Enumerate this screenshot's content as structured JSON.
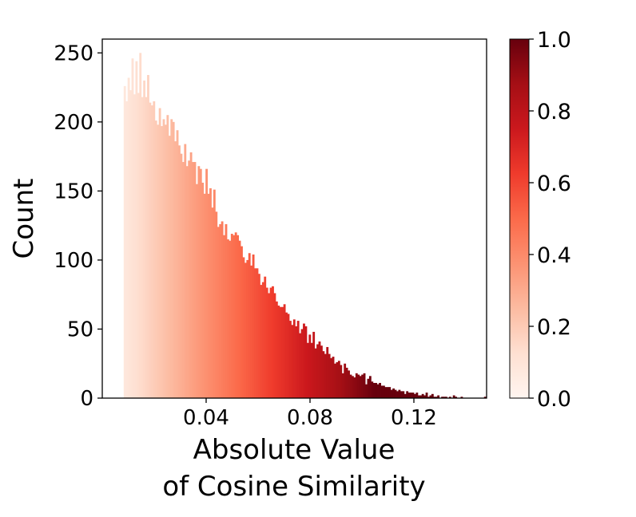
{
  "chart_data": {
    "type": "bar",
    "subtype": "histogram",
    "xlabel_lines": [
      "Absolute Value",
      "of Cosine Similarity"
    ],
    "ylabel": "Count",
    "xlim": [
      0.0,
      0.148
    ],
    "ylim": [
      0,
      260
    ],
    "xticks": [
      0.04,
      0.08,
      0.12
    ],
    "xtick_labels": [
      "0.04",
      "0.08",
      "0.12"
    ],
    "yticks": [
      0,
      50,
      100,
      150,
      200,
      250
    ],
    "ytick_labels": [
      "0",
      "50",
      "100",
      "150",
      "200",
      "250"
    ],
    "bin_start": 0.0,
    "bin_width": 0.00075,
    "counts": [
      0,
      0,
      0,
      0,
      0,
      0,
      0,
      0,
      0,
      0,
      0,
      226,
      215,
      232,
      223,
      246,
      220,
      244,
      221,
      250,
      218,
      230,
      218,
      234,
      214,
      212,
      215,
      201,
      198,
      210,
      197,
      202,
      198,
      205,
      190,
      202,
      200,
      186,
      194,
      183,
      177,
      171,
      184,
      168,
      172,
      178,
      171,
      171,
      155,
      168,
      166,
      156,
      148,
      166,
      148,
      152,
      138,
      151,
      135,
      124,
      126,
      128,
      118,
      126,
      115,
      114,
      119,
      118,
      120,
      118,
      114,
      110,
      102,
      98,
      100,
      105,
      96,
      104,
      94,
      94,
      90,
      82,
      84,
      88,
      80,
      76,
      80,
      81,
      76,
      70,
      67,
      66,
      66,
      68,
      62,
      61,
      56,
      53,
      57,
      52,
      56,
      47,
      50,
      54,
      52,
      40,
      46,
      40,
      48,
      36,
      39,
      41,
      38,
      34,
      32,
      37,
      32,
      29,
      30,
      25,
      26,
      27,
      24,
      18,
      25,
      22,
      20,
      17,
      16,
      15,
      18,
      17,
      16,
      17,
      18,
      10,
      14,
      16,
      12,
      11,
      11,
      10,
      11,
      9,
      9,
      8,
      8,
      8,
      6,
      7,
      6,
      5,
      6,
      5,
      5,
      3,
      5,
      4,
      4,
      4,
      3,
      4,
      2,
      2,
      3,
      2,
      4,
      1,
      2,
      3,
      1,
      1,
      2,
      0,
      1,
      1,
      1,
      0,
      1,
      0,
      2,
      1,
      0,
      0,
      1,
      0,
      0,
      0,
      0,
      0,
      0,
      0,
      0,
      0,
      0,
      0,
      1
    ],
    "colormap": "Reds",
    "colorbar": {
      "range": [
        0.0,
        1.0
      ],
      "ticks": [
        0.0,
        0.2,
        0.4,
        0.6,
        0.8,
        1.0
      ],
      "tick_labels": [
        "0.0",
        "0.2",
        "0.4",
        "0.6",
        "0.8",
        "1.0"
      ],
      "stops": [
        "#fff5f0",
        "#fee0d2",
        "#fcbba1",
        "#fc9272",
        "#fb6a4a",
        "#ef3b2c",
        "#cb181d",
        "#a50f15",
        "#67000d"
      ]
    },
    "grid": false
  }
}
